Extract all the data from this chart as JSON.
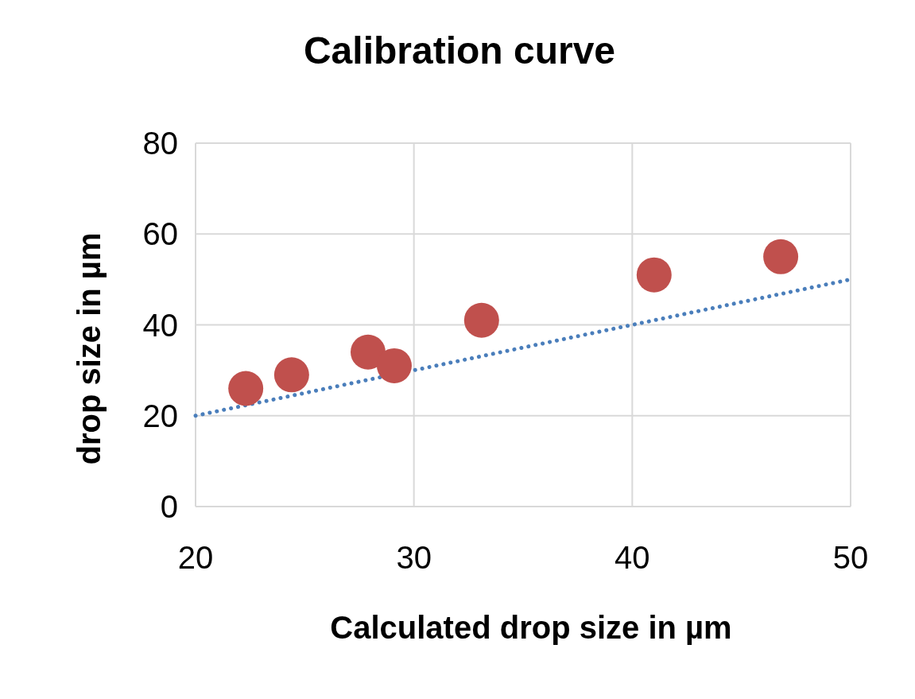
{
  "chart_data": {
    "type": "scatter",
    "title": "Calibration curve",
    "xlabel": "Calculated drop size in µm",
    "ylabel": "drop size in µm",
    "xlim": [
      20,
      50
    ],
    "xticks": [
      20,
      30,
      40,
      50
    ],
    "ylim": [
      0,
      80
    ],
    "yticks": [
      0,
      20,
      40,
      60,
      80
    ],
    "grid": true,
    "marker": "circle",
    "series": [
      {
        "color": "#c0504d",
        "x": [
          22.3,
          24.4,
          27.9,
          29.1,
          33.1,
          41.0,
          46.8
        ],
        "values": [
          26,
          29,
          34,
          31,
          41,
          51,
          55
        ]
      },
      {
        "type": "line",
        "color": "#4a7ebb",
        "line_style": "dotted",
        "marker": "none",
        "x": [
          20,
          50
        ],
        "values": [
          20,
          50
        ]
      }
    ]
  }
}
